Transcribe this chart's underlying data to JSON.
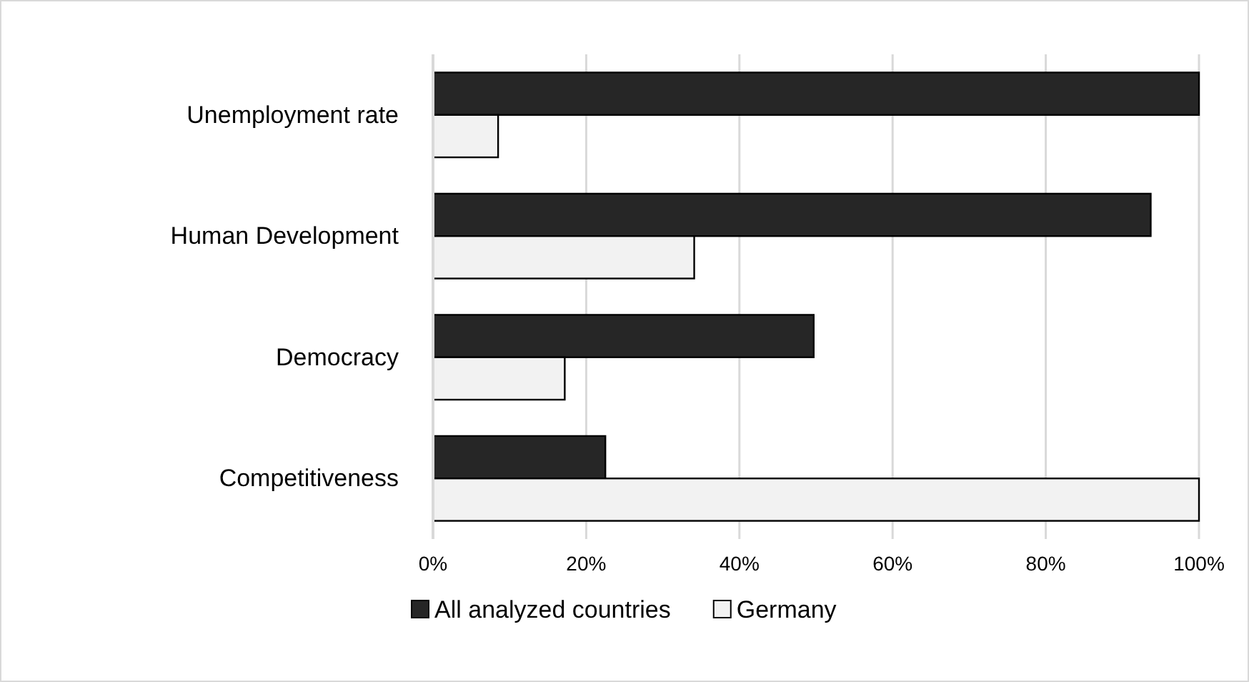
{
  "chart_data": {
    "type": "bar",
    "orientation": "horizontal",
    "categories": [
      "Unemployment rate",
      "Human Development",
      "Democracy",
      "Competitiveness"
    ],
    "series": [
      {
        "name": "All analyzed countries",
        "color": "#262626",
        "values": [
          100,
          93.7,
          49.7,
          22.5
        ]
      },
      {
        "name": "Germany",
        "color": "#f2f2f2",
        "values": [
          8.5,
          34.1,
          17.2,
          100
        ]
      }
    ],
    "xlim": [
      0,
      100
    ],
    "xticks": [
      {
        "value": 0,
        "label": "0%"
      },
      {
        "value": 20,
        "label": "20%"
      },
      {
        "value": 40,
        "label": "40%"
      },
      {
        "value": 60,
        "label": "60%"
      },
      {
        "value": 80,
        "label": "80%"
      },
      {
        "value": 100,
        "label": "100%"
      }
    ],
    "grid": "x",
    "legend": "bottom"
  }
}
